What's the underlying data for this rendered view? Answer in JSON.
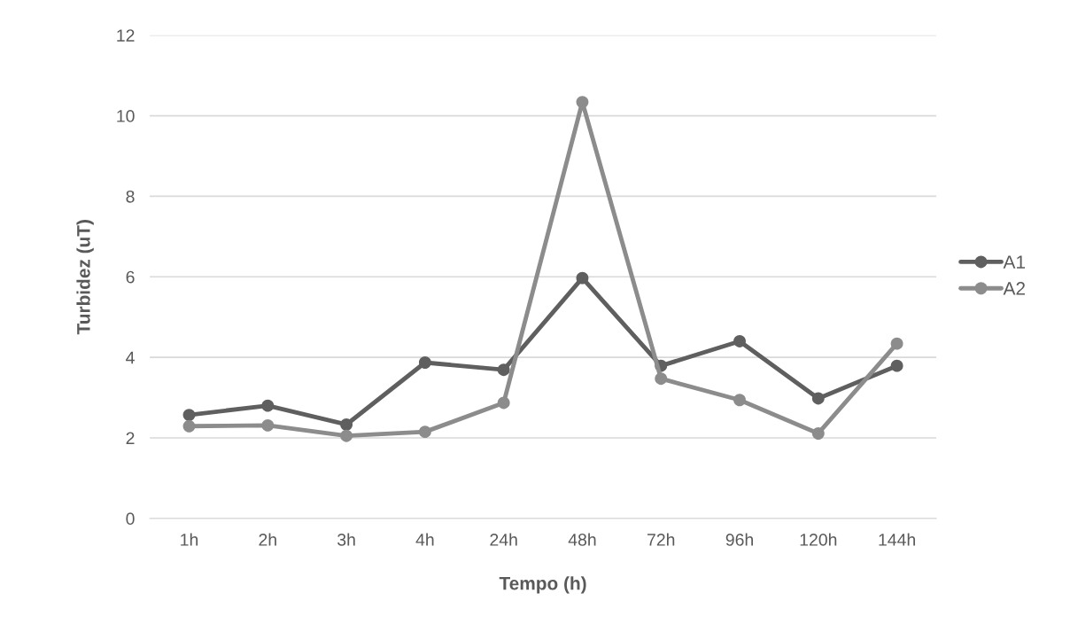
{
  "chart_data": {
    "type": "line",
    "xlabel": "Tempo (h)",
    "ylabel": "Turbidez (uT)",
    "categories": [
      "1h",
      "2h",
      "3h",
      "4h",
      "24h",
      "48h",
      "72h",
      "96h",
      "120h",
      "144h"
    ],
    "series": [
      {
        "name": "A1",
        "color": "#5f5f5f",
        "values": [
          2.57,
          2.8,
          2.33,
          3.87,
          3.69,
          5.97,
          3.79,
          4.4,
          2.98,
          3.79
        ]
      },
      {
        "name": "A2",
        "color": "#8c8c8c",
        "values": [
          2.29,
          2.31,
          2.05,
          2.15,
          2.87,
          10.34,
          3.47,
          2.94,
          2.11,
          4.34
        ]
      }
    ],
    "ylim": [
      0,
      12
    ],
    "yticks": [
      0,
      2,
      4,
      6,
      8,
      10,
      12
    ],
    "grid": "y",
    "legend": "right",
    "marker": "circle",
    "line_style": "solid"
  }
}
